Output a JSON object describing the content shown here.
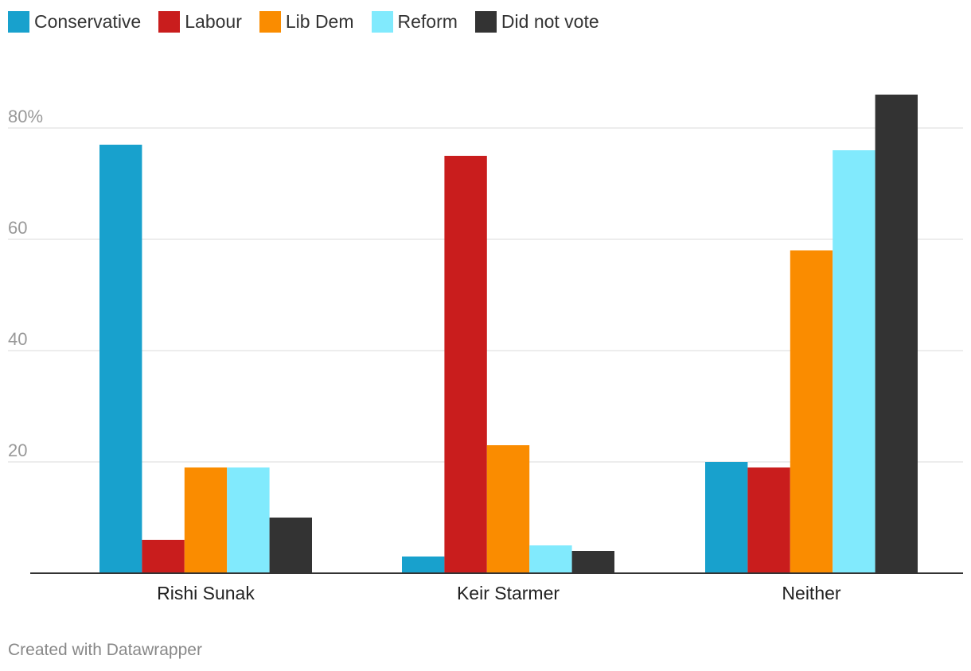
{
  "chart_data": {
    "type": "bar",
    "categories": [
      "Rishi Sunak",
      "Keir Starmer",
      "Neither"
    ],
    "series": [
      {
        "name": "Conservative",
        "color": "#18a1cd",
        "values": [
          77,
          3,
          20
        ]
      },
      {
        "name": "Labour",
        "color": "#c91d1d",
        "values": [
          6,
          75,
          19
        ]
      },
      {
        "name": "Lib Dem",
        "color": "#fa8c00",
        "values": [
          19,
          23,
          58
        ]
      },
      {
        "name": "Reform",
        "color": "#81eafd",
        "values": [
          19,
          5,
          76
        ]
      },
      {
        "name": "Did not vote",
        "color": "#333333",
        "values": [
          10,
          4,
          86
        ]
      }
    ],
    "y_ticks": [
      {
        "value": 80,
        "label": "80%"
      },
      {
        "value": 60,
        "label": "60"
      },
      {
        "value": 40,
        "label": "40"
      },
      {
        "value": 20,
        "label": "20"
      }
    ],
    "ylim": [
      0,
      90
    ],
    "grid": true,
    "legend_position": "top-left"
  },
  "footer": {
    "credit": "Created with Datawrapper"
  }
}
